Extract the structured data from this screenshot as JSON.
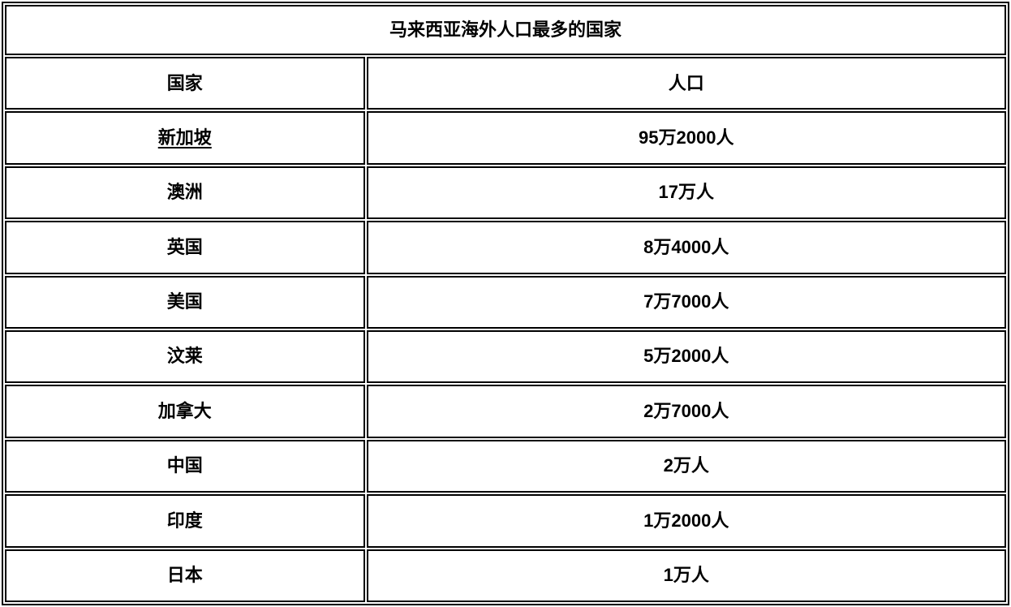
{
  "page": {
    "background_color": "#ffffff",
    "border_color": "#000000",
    "text_color": "#000000"
  },
  "table": {
    "title": "马来西亚海外人口最多的国家",
    "columns": {
      "country": "国家",
      "population": "人口"
    },
    "rows": [
      {
        "country": "新加坡",
        "population": "95万2000人",
        "country_is_link": true
      },
      {
        "country": "澳洲",
        "population": "17万人",
        "country_is_link": false
      },
      {
        "country": "英国",
        "population": "8万4000人",
        "country_is_link": false
      },
      {
        "country": "美国",
        "population": "7万7000人",
        "country_is_link": false
      },
      {
        "country": "汶莱",
        "population": "5万2000人",
        "country_is_link": false
      },
      {
        "country": "加拿大",
        "population": "2万7000人",
        "country_is_link": false
      },
      {
        "country": "中国",
        "population": "2万人",
        "country_is_link": false
      },
      {
        "country": "印度",
        "population": "1万2000人",
        "country_is_link": false
      },
      {
        "country": "日本",
        "population": "1万人",
        "country_is_link": false
      }
    ]
  }
}
